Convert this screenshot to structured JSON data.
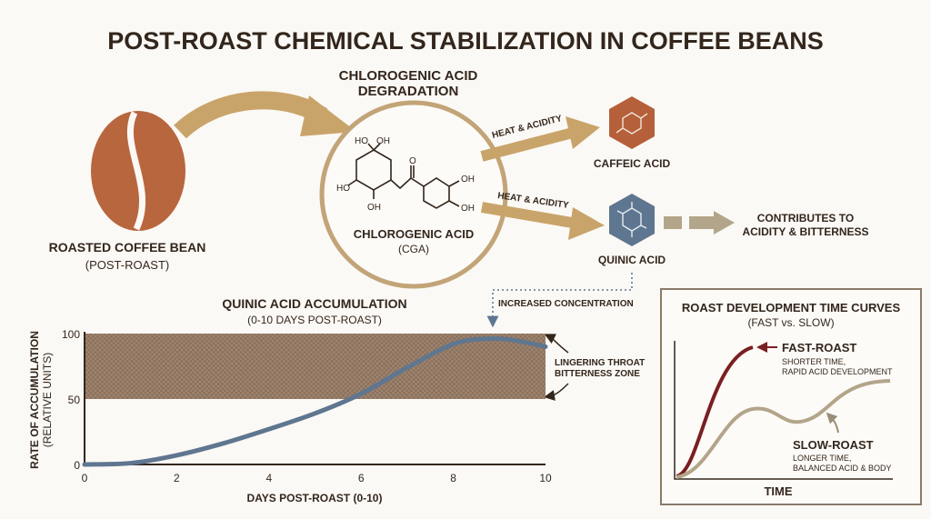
{
  "title": "POST-ROAST CHEMICAL STABILIZATION IN COFFEE BEANS",
  "bean": {
    "label": "ROASTED COFFEE BEAN",
    "sublabel": "(POST-ROAST)",
    "color": "#b8663e"
  },
  "degradation": {
    "title_line1": "CHLOROGENIC ACID",
    "title_line2": "DEGRADATION",
    "molecule_label": "CHLOROGENIC ACID",
    "molecule_abbr": "(CGA)",
    "molecule_groups": [
      "HO",
      "OH",
      "HO",
      "OH",
      "O",
      "OH",
      "OH"
    ]
  },
  "pathways": [
    {
      "arrow_label": "HEAT & ACIDITY",
      "product": "CAFFEIC ACID",
      "color": "#b5603a"
    },
    {
      "arrow_label": "HEAT & ACIDITY",
      "product": "QUINIC ACID",
      "color": "#5f7690"
    }
  ],
  "effect": {
    "line1": "CONTRIBUTES TO",
    "line2": "ACIDITY & BITTERNESS"
  },
  "concentration_note": "INCREASED CONCENTRATION",
  "chart_data": [
    {
      "type": "line",
      "title": "QUINIC ACID ACCUMULATION",
      "subtitle": "(0-10 DAYS POST-ROAST)",
      "xlabel": "DAYS POST-ROAST (0-10)",
      "ylabel": "RATE OF ACCUMULATION",
      "ylabel_sub": "(RELATIVE UNITS)",
      "xlim": [
        0,
        10
      ],
      "ylim": [
        0,
        100
      ],
      "xticks": [
        "0",
        "2",
        "4",
        "6",
        "8",
        "10"
      ],
      "yticks": [
        "0",
        "50",
        "100"
      ],
      "x": [
        0,
        1,
        2,
        3,
        4,
        5,
        6,
        7,
        8,
        8.7,
        9.3,
        10
      ],
      "y": [
        0,
        1,
        7,
        16,
        27,
        39,
        54,
        74,
        92,
        96,
        95,
        90
      ],
      "line_color": "#5f7690",
      "band": {
        "from": 50,
        "to": 100,
        "label_line1": "LINGERING THROAT",
        "label_line2": "BITTERNESS ZONE",
        "color": "#8b705c"
      },
      "grid": false
    },
    {
      "type": "line",
      "title": "ROAST DEVELOPMENT TIME CURVES",
      "subtitle": "(FAST vs. SLOW)",
      "xlabel": "TIME",
      "series": [
        {
          "name": "FAST-ROAST",
          "note_line1": "SHORTER TIME,",
          "note_line2": "RAPID ACID DEVELOPMENT",
          "color": "#7a1f22"
        },
        {
          "name": "SLOW-ROAST",
          "note_line1": "LONGER TIME,",
          "note_line2": "BALANCED ACID & BODY",
          "color": "#b3a58a"
        }
      ]
    }
  ]
}
